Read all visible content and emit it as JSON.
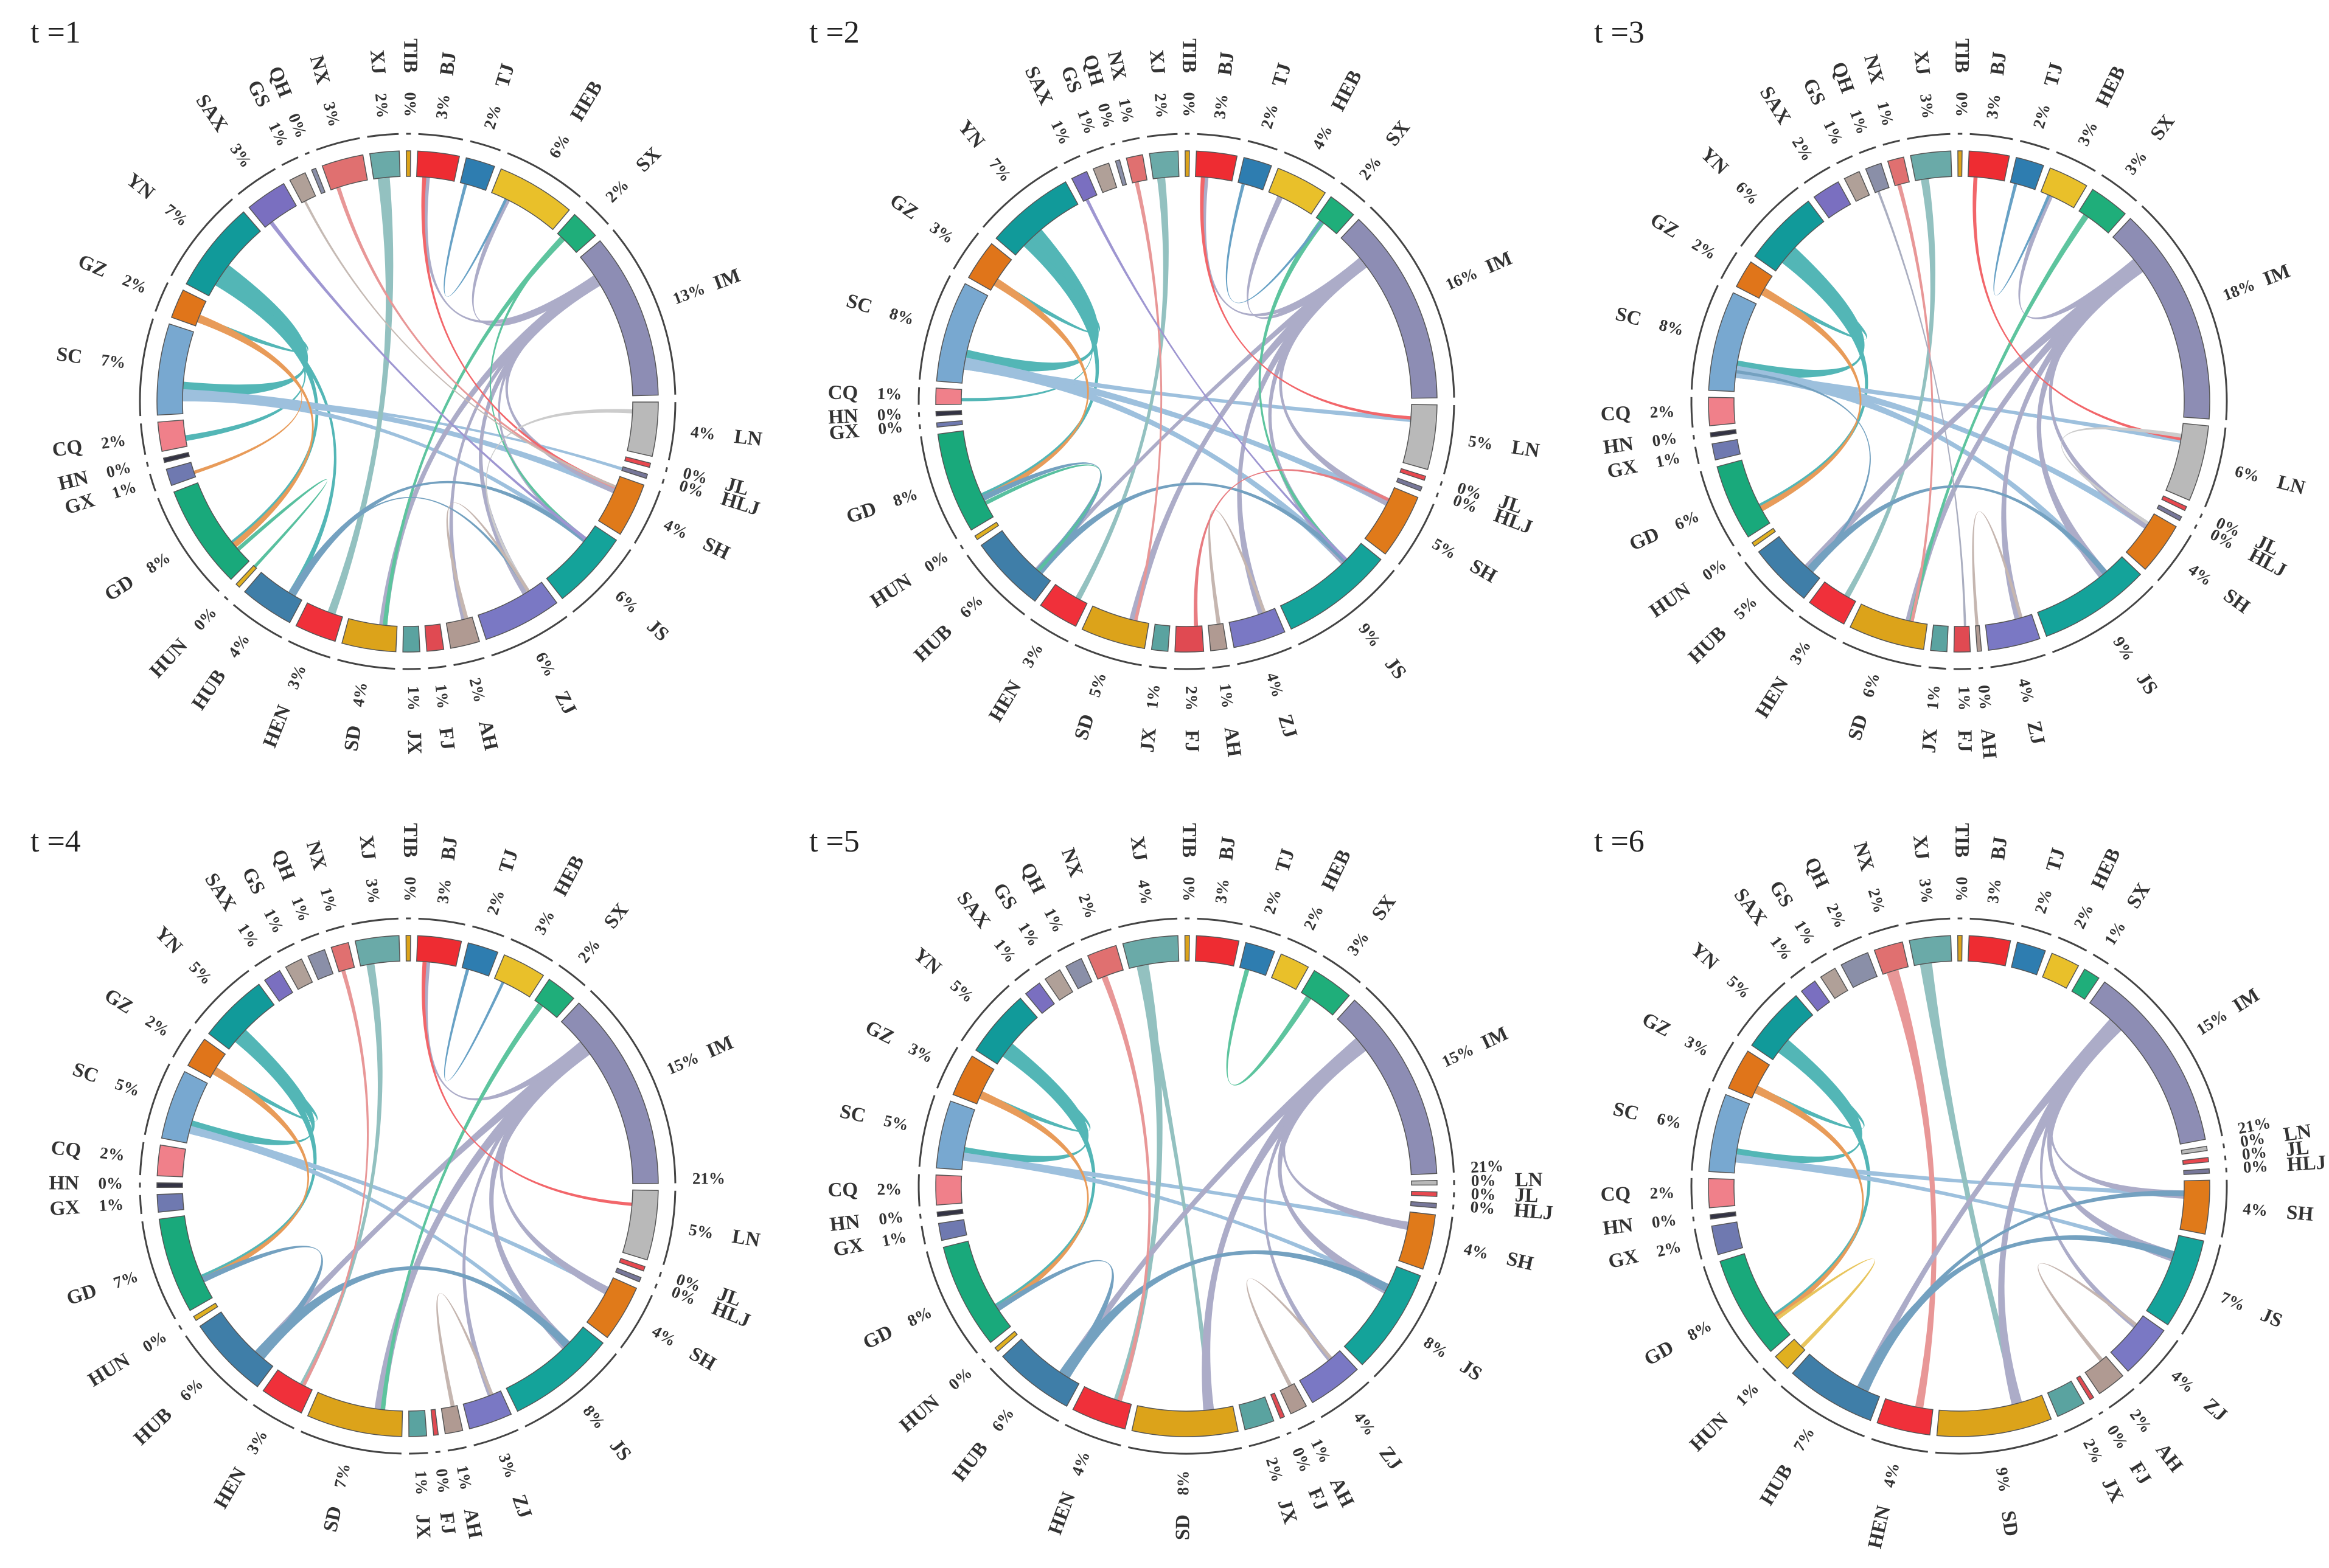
{
  "figure": {
    "regions": [
      "BJ",
      "TJ",
      "HEB",
      "SX",
      "IM",
      "LN",
      "JL",
      "HLJ",
      "SH",
      "JS",
      "ZJ",
      "AH",
      "FJ",
      "JX",
      "SD",
      "HEN",
      "HUB",
      "HUN",
      "GD",
      "GX",
      "HN",
      "CQ",
      "SC",
      "GZ",
      "YN",
      "SAX",
      "GS",
      "QH",
      "NX",
      "XJ",
      "TIB"
    ],
    "colors": {
      "BJ": "#ee2c32",
      "TJ": "#2e7db0",
      "HEB": "#e9c02a",
      "SX": "#1fae7a",
      "IM": "#8d8db4",
      "LN": "#b9b9b9",
      "JL": "#e8484f",
      "HLJ": "#777799",
      "SH": "#e07a1a",
      "JS": "#14a39a",
      "ZJ": "#7a78c4",
      "AH": "#b09a92",
      "FJ": "#e04a52",
      "JX": "#5aa3a0",
      "SD": "#dca31a",
      "HEN": "#f0303a",
      "HUB": "#3f7ea8",
      "HUN": "#e0b020",
      "GD": "#19a97b",
      "GX": "#6f79b0",
      "HN": "#333344",
      "CQ": "#f0808a",
      "SC": "#78a8d0",
      "GZ": "#e0751a",
      "YN": "#119a9a",
      "SAX": "#7a6fc0",
      "GS": "#b0a098",
      "QH": "#8a8fa8",
      "NX": "#e07070",
      "XJ": "#6aaaa8",
      "TIB": "#dca31a"
    }
  },
  "chart_data": [
    {
      "type": "chord",
      "title": "t =1",
      "shares": {
        "BJ": "3%",
        "TJ": "2%",
        "HEB": "6%",
        "SX": "2%",
        "IM": "13%",
        "LN": "4%",
        "JL": "0%",
        "HLJ": "0%",
        "SH": "4%",
        "JS": "6%",
        "ZJ": "6%",
        "AH": "2%",
        "FJ": "1%",
        "JX": "1%",
        "SD": "4%",
        "HEN": "3%",
        "HUB": "4%",
        "HUN": "0%",
        "GD": "8%",
        "GX": "1%",
        "HN": "0%",
        "CQ": "2%",
        "SC": "7%",
        "GZ": "2%",
        "YN": "7%",
        "SAX": "3%",
        "GS": "1%",
        "QH": "0%",
        "NX": "3%",
        "XJ": "2%",
        "TIB": "0%"
      },
      "flows": [
        [
          "YN",
          "SC",
          6
        ],
        [
          "YN",
          "CQ",
          2
        ],
        [
          "YN",
          "GZ",
          2
        ],
        [
          "YN",
          "HUB",
          2
        ],
        [
          "YN",
          "GD",
          3
        ],
        [
          "SC",
          "HLJ",
          2
        ],
        [
          "SC",
          "SH",
          3
        ],
        [
          "SC",
          "JS",
          2
        ],
        [
          "GZ",
          "GD",
          2
        ],
        [
          "GZ",
          "GX",
          1
        ],
        [
          "XJ",
          "HEN",
          3
        ],
        [
          "IM",
          "SH",
          3
        ],
        [
          "IM",
          "HEB",
          2
        ],
        [
          "IM",
          "ZJ",
          3
        ],
        [
          "IM",
          "AH",
          2
        ],
        [
          "IM",
          "SD",
          3
        ],
        [
          "IM",
          "JS",
          2
        ],
        [
          "IM",
          "BJ",
          2
        ],
        [
          "SX",
          "SD",
          1.5
        ],
        [
          "SX",
          "JS",
          1
        ],
        [
          "HUB",
          "JS",
          2
        ],
        [
          "HUB",
          "ZJ",
          1
        ],
        [
          "GD",
          "HUN",
          1
        ],
        [
          "BJ",
          "SH",
          1
        ],
        [
          "LN",
          "ZJ",
          1
        ],
        [
          "NX",
          "SH",
          1
        ],
        [
          "SAX",
          "JS",
          1
        ],
        [
          "GS",
          "SH",
          0.6
        ],
        [
          "TJ",
          "HEB",
          0.8
        ],
        [
          "AH",
          "ZJ",
          1
        ]
      ]
    },
    {
      "type": "chord",
      "title": "t =2",
      "shares": {
        "BJ": "3%",
        "TJ": "2%",
        "HEB": "4%",
        "SX": "2%",
        "IM": "16%",
        "LN": "5%",
        "JL": "0%",
        "HLJ": "0%",
        "SH": "5%",
        "JS": "9%",
        "ZJ": "4%",
        "AH": "1%",
        "FJ": "2%",
        "JX": "1%",
        "SD": "5%",
        "HEN": "3%",
        "HUB": "6%",
        "HUN": "0%",
        "GD": "8%",
        "GX": "0%",
        "HN": "0%",
        "CQ": "1%",
        "SC": "8%",
        "GZ": "3%",
        "YN": "7%",
        "SAX": "1%",
        "GS": "1%",
        "QH": "0%",
        "NX": "1%",
        "XJ": "2%",
        "TIB": "0%"
      },
      "flows": [
        [
          "YN",
          "SC",
          6
        ],
        [
          "YN",
          "GD",
          3
        ],
        [
          "YN",
          "GZ",
          2
        ],
        [
          "YN",
          "CQ",
          1
        ],
        [
          "SC",
          "SH",
          3
        ],
        [
          "SC",
          "JS",
          3
        ],
        [
          "SC",
          "LN",
          2
        ],
        [
          "GZ",
          "GD",
          2
        ],
        [
          "XJ",
          "HEN",
          2
        ],
        [
          "IM",
          "SH",
          3
        ],
        [
          "IM",
          "JS",
          3
        ],
        [
          "IM",
          "HEB",
          2
        ],
        [
          "IM",
          "ZJ",
          3
        ],
        [
          "IM",
          "SD",
          3
        ],
        [
          "IM",
          "BJ",
          2
        ],
        [
          "IM",
          "HUB",
          2
        ],
        [
          "SX",
          "JS",
          1.5
        ],
        [
          "HUB",
          "JS",
          2
        ],
        [
          "HUB",
          "GD",
          2
        ],
        [
          "GD",
          "HUB",
          1
        ],
        [
          "BJ",
          "LN",
          1
        ],
        [
          "NX",
          "SD",
          1
        ],
        [
          "SAX",
          "JS",
          0.8
        ],
        [
          "TJ",
          "SX",
          0.8
        ],
        [
          "AH",
          "ZJ",
          1
        ],
        [
          "FJ",
          "SH",
          1
        ]
      ]
    },
    {
      "type": "chord",
      "title": "t =3",
      "shares": {
        "BJ": "3%",
        "TJ": "2%",
        "HEB": "3%",
        "SX": "3%",
        "IM": "18%",
        "LN": "6%",
        "JL": "0%",
        "HLJ": "0%",
        "SH": "4%",
        "JS": "9%",
        "ZJ": "4%",
        "AH": "0%",
        "FJ": "1%",
        "JX": "1%",
        "SD": "6%",
        "HEN": "3%",
        "HUB": "5%",
        "HUN": "0%",
        "GD": "6%",
        "GX": "1%",
        "HN": "0%",
        "CQ": "2%",
        "SC": "8%",
        "GZ": "2%",
        "YN": "6%",
        "SAX": "2%",
        "GS": "1%",
        "QH": "1%",
        "NX": "1%",
        "XJ": "3%",
        "TIB": "0%"
      },
      "flows": [
        [
          "YN",
          "SC",
          5
        ],
        [
          "YN",
          "GD",
          3
        ],
        [
          "YN",
          "GZ",
          2
        ],
        [
          "SC",
          "SH",
          3
        ],
        [
          "SC",
          "JS",
          3
        ],
        [
          "SC",
          "LN",
          2
        ],
        [
          "GZ",
          "GD",
          2
        ],
        [
          "XJ",
          "HEN",
          2
        ],
        [
          "IM",
          "SH",
          3
        ],
        [
          "IM",
          "JS",
          4
        ],
        [
          "IM",
          "HEB",
          2
        ],
        [
          "IM",
          "ZJ",
          3
        ],
        [
          "IM",
          "SD",
          3
        ],
        [
          "IM",
          "HUB",
          3
        ],
        [
          "SX",
          "SD",
          1.5
        ],
        [
          "HUB",
          "JS",
          2
        ],
        [
          "HUB",
          "SC",
          1
        ],
        [
          "BJ",
          "LN",
          1
        ],
        [
          "LN",
          "SH",
          1
        ],
        [
          "NX",
          "SD",
          1
        ],
        [
          "QH",
          "FJ",
          0.6
        ],
        [
          "TJ",
          "HEB",
          0.8
        ],
        [
          "AH",
          "ZJ",
          1
        ]
      ]
    },
    {
      "type": "chord",
      "title": "t =4",
      "shares": {
        "BJ": "3%",
        "TJ": "2%",
        "HEB": "3%",
        "SX": "2%",
        "IM": "15%",
        "LN": "5%",
        "JL": "0%",
        "HLJ": "0%",
        "SH": "4%",
        "JS": "8%",
        "ZJ": "3%",
        "AH": "1%",
        "FJ": "0%",
        "JX": "1%",
        "SD": "7%",
        "HEN": "3%",
        "HUB": "6%",
        "HUN": "0%",
        "GD": "7%",
        "GX": "1%",
        "HN": "0%",
        "CQ": "2%",
        "SC": "5%",
        "GZ": "2%",
        "YN": "5%",
        "SAX": "1%",
        "GS": "1%",
        "QH": "1%",
        "NX": "1%",
        "XJ": "3%",
        "TIB": "0%"
      },
      "extra": {
        "IM_total": "21%"
      },
      "flows": [
        [
          "YN",
          "SC",
          4
        ],
        [
          "YN",
          "GD",
          3
        ],
        [
          "YN",
          "GZ",
          2
        ],
        [
          "SC",
          "SH",
          2
        ],
        [
          "SC",
          "JS",
          2
        ],
        [
          "GZ",
          "GD",
          2
        ],
        [
          "XJ",
          "HEN",
          2
        ],
        [
          "IM",
          "SH",
          3
        ],
        [
          "IM",
          "JS",
          4
        ],
        [
          "IM",
          "SD",
          4
        ],
        [
          "IM",
          "HUB",
          3
        ],
        [
          "IM",
          "ZJ",
          2
        ],
        [
          "IM",
          "BJ",
          2
        ],
        [
          "SX",
          "SD",
          1.5
        ],
        [
          "HUB",
          "JS",
          3
        ],
        [
          "HUB",
          "GD",
          2
        ],
        [
          "BJ",
          "LN",
          1
        ],
        [
          "NX",
          "HEN",
          1
        ],
        [
          "TJ",
          "HEB",
          0.8
        ],
        [
          "AH",
          "ZJ",
          1
        ]
      ]
    },
    {
      "type": "chord",
      "title": "t =5",
      "shares": {
        "BJ": "3%",
        "TJ": "2%",
        "HEB": "2%",
        "SX": "3%",
        "IM": "15%",
        "LN": "0%",
        "JL": "0%",
        "HLJ": "0%",
        "SH": "4%",
        "JS": "8%",
        "ZJ": "4%",
        "AH": "1%",
        "FJ": "0%",
        "JX": "2%",
        "SD": "8%",
        "HEN": "4%",
        "HUB": "6%",
        "HUN": "0%",
        "GD": "8%",
        "GX": "1%",
        "HN": "0%",
        "CQ": "2%",
        "SC": "5%",
        "GZ": "3%",
        "YN": "5%",
        "SAX": "1%",
        "GS": "1%",
        "QH": "1%",
        "NX": "2%",
        "XJ": "4%",
        "TIB": "0%"
      },
      "extra": {
        "IM_total": "21%"
      },
      "flows": [
        [
          "YN",
          "SC",
          4
        ],
        [
          "YN",
          "GD",
          3
        ],
        [
          "YN",
          "GZ",
          2
        ],
        [
          "SC",
          "SH",
          2
        ],
        [
          "SC",
          "JS",
          2
        ],
        [
          "GZ",
          "GD",
          2
        ],
        [
          "XJ",
          "HEN",
          3
        ],
        [
          "XJ",
          "SD",
          2
        ],
        [
          "IM",
          "SH",
          3
        ],
        [
          "IM",
          "JS",
          4
        ],
        [
          "IM",
          "SD",
          4
        ],
        [
          "IM",
          "HUB",
          3
        ],
        [
          "IM",
          "ZJ",
          2
        ],
        [
          "SX",
          "TJ",
          1.5
        ],
        [
          "HUB",
          "JS",
          3
        ],
        [
          "HUB",
          "GD",
          2
        ],
        [
          "NX",
          "HEN",
          1.5
        ],
        [
          "AH",
          "ZJ",
          1
        ]
      ]
    },
    {
      "type": "chord",
      "title": "t =6",
      "shares": {
        "BJ": "3%",
        "TJ": "2%",
        "HEB": "2%",
        "SX": "1%",
        "IM": "15%",
        "LN": "0%",
        "JL": "0%",
        "HLJ": "0%",
        "SH": "4%",
        "JS": "7%",
        "ZJ": "4%",
        "AH": "2%",
        "FJ": "0%",
        "JX": "2%",
        "SD": "9%",
        "HEN": "4%",
        "HUB": "7%",
        "HUN": "1%",
        "GD": "8%",
        "GX": "2%",
        "HN": "0%",
        "CQ": "2%",
        "SC": "6%",
        "GZ": "3%",
        "YN": "5%",
        "SAX": "1%",
        "GS": "1%",
        "QH": "2%",
        "NX": "2%",
        "XJ": "3%",
        "TIB": "0%"
      },
      "extra": {
        "IM_total": "21%"
      },
      "flows": [
        [
          "YN",
          "SC",
          4
        ],
        [
          "YN",
          "GD",
          3
        ],
        [
          "YN",
          "GZ",
          2
        ],
        [
          "SC",
          "SH",
          2
        ],
        [
          "SC",
          "JS",
          2
        ],
        [
          "GZ",
          "GD",
          2
        ],
        [
          "NX",
          "HEN",
          3
        ],
        [
          "XJ",
          "SD",
          3
        ],
        [
          "IM",
          "SH",
          3
        ],
        [
          "IM",
          "JS",
          4
        ],
        [
          "IM",
          "SD",
          4
        ],
        [
          "IM",
          "HUB",
          3
        ],
        [
          "IM",
          "ZJ",
          2
        ],
        [
          "HUB",
          "JS",
          3
        ],
        [
          "HUB",
          "SH",
          2
        ],
        [
          "HUN",
          "GD",
          1
        ],
        [
          "AH",
          "ZJ",
          1
        ]
      ]
    }
  ]
}
